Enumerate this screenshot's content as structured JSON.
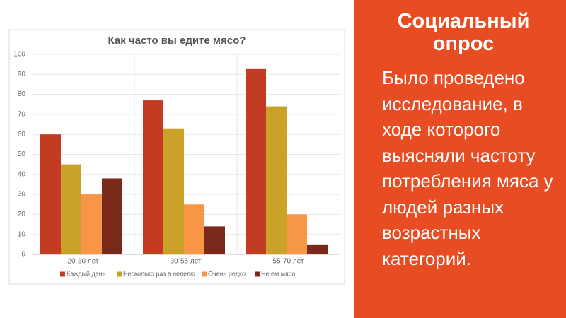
{
  "chart_data": {
    "type": "bar",
    "title": "Как часто вы едите мясо?",
    "categories": [
      "20-30 лет",
      "30-55 лет",
      "55-70 лет"
    ],
    "series": [
      {
        "name": "Каждый день",
        "color": "#c23b22",
        "values": [
          60,
          77,
          93
        ]
      },
      {
        "name": "Несколько раз в неделю",
        "color": "#c9a227",
        "values": [
          45,
          63,
          74
        ]
      },
      {
        "name": "Очень редко",
        "color": "#f79646",
        "values": [
          30,
          25,
          20
        ]
      },
      {
        "name": "Не ем мясо",
        "color": "#7a2a1a",
        "values": [
          38,
          14,
          5
        ]
      }
    ],
    "ylim": [
      0,
      100
    ],
    "yticks": [
      0,
      10,
      20,
      30,
      40,
      50,
      60,
      70,
      80,
      90,
      100
    ],
    "grid": true,
    "legend": "bottom"
  },
  "slide": {
    "heading": "Социальный опрос",
    "body": "Было проведено исследование, в ходе которого выясняли частоту потребления мяса у людей разных возрастных категорий."
  }
}
